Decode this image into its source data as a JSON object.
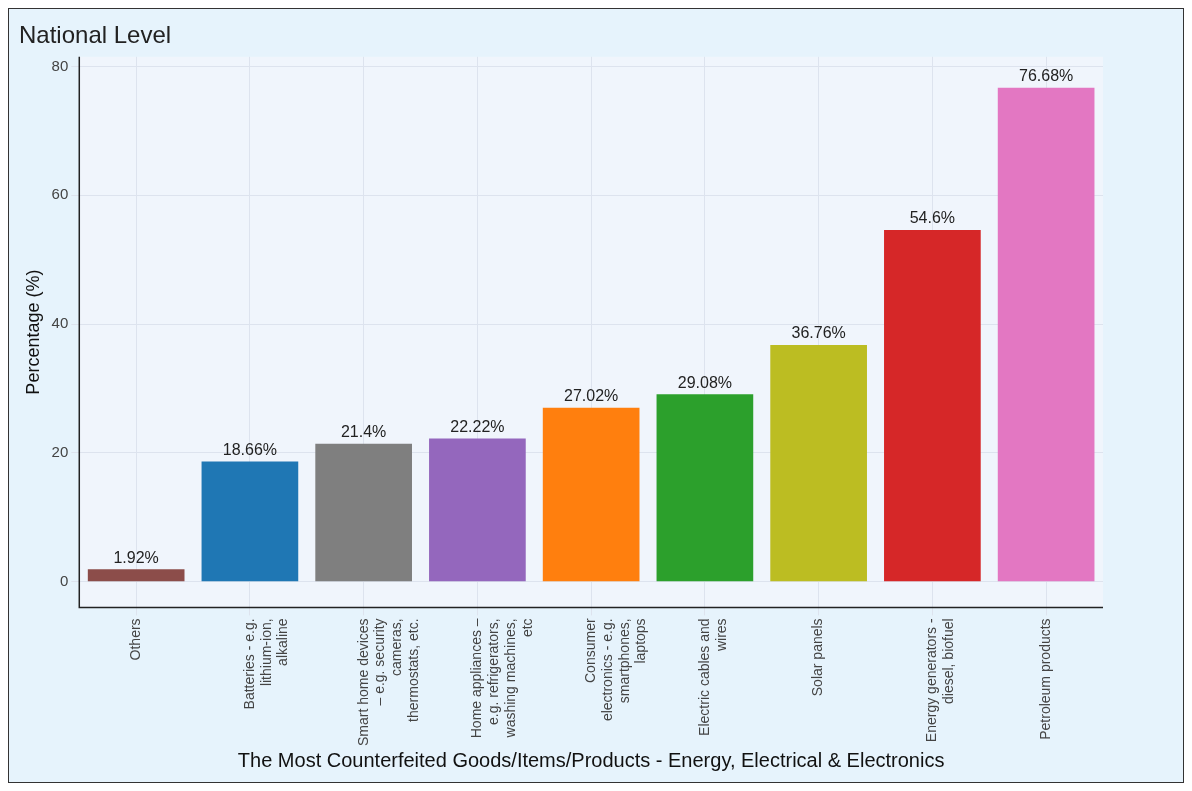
{
  "chart_data": {
    "type": "bar",
    "title": "National Level",
    "xlabel": "The Most Counterfeited Goods/Items/Products - Energy, Electrical & Electronics",
    "ylabel": "Percentage (%)",
    "categories": [
      "Others",
      "Batteries - e.g. lithium-ion, alkaline",
      "Smart home devices – e.g. security cameras, thermostats, etc.",
      "Home appliances – e.g. refrigerators, washing machines, etc",
      "Consumer electronics - e.g. smartphones, laptops",
      "Electric cables and wires",
      "Solar panels",
      "Energy generators - diesel, biofuel",
      "Petroleum products"
    ],
    "values": [
      1.92,
      18.66,
      21.4,
      22.22,
      27.02,
      29.08,
      36.76,
      54.6,
      76.68
    ],
    "colors": [
      "#8c4d4a",
      "#1f77b4",
      "#7f7f7f",
      "#9467bd",
      "#ff7f0e",
      "#2ca02c",
      "#bcbd22",
      "#d62728",
      "#e377c2"
    ],
    "value_labels": [
      "1.92%",
      "18.66%",
      "21.4%",
      "22.22%",
      "27.02%",
      "29.08%",
      "36.76%",
      "54.6%",
      "76.68%"
    ],
    "ylim": [
      -4,
      81.5
    ],
    "yticks": [
      0,
      20,
      40,
      60,
      80
    ],
    "grid": true,
    "legend": false
  }
}
